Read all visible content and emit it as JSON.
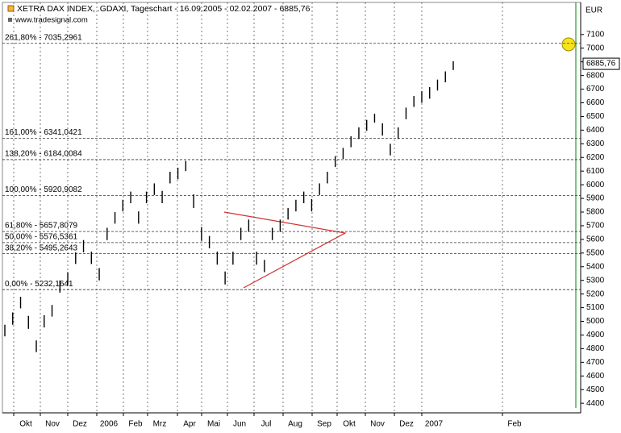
{
  "chart_data": {
    "type": "ohlc",
    "title": "XETRA DAX INDEX, .GDAXI, Tageschart - 16.09.2005 - 02.02.2007 - 6885,76",
    "subtitle": "www.tradesignal.com",
    "y_axis_label": "EUR",
    "categories": [
      "Okt",
      "Nov",
      "Dez",
      "2006",
      "Feb",
      "Mrz",
      "Apr",
      "Mai",
      "Jun",
      "Jul",
      "Aug",
      "Sep",
      "Okt",
      "Nov",
      "Dez",
      "2007",
      "Feb"
    ],
    "high": [
      4975,
      5065,
      5180,
      5040,
      4860,
      5045,
      5120,
      5300,
      5360,
      5505,
      5595,
      5510,
      5390,
      5685,
      5800,
      5890,
      5950,
      5805,
      5950,
      6010,
      5955,
      6095,
      6125,
      6175,
      5930,
      5690,
      5625,
      5510,
      5365,
      5510,
      5685,
      5745,
      5510,
      5450,
      5685,
      5745,
      5830,
      5890,
      5950,
      5895,
      6010,
      6095,
      6210,
      6270,
      6355,
      6420,
      6475,
      6520,
      6450,
      6300,
      6420,
      6565,
      6650,
      6685,
      6715,
      6770,
      6830,
      6905
    ],
    "low": [
      4890,
      4975,
      5095,
      4945,
      4775,
      4955,
      5035,
      5210,
      5270,
      5420,
      5505,
      5420,
      5300,
      5595,
      5715,
      5805,
      5865,
      5715,
      5865,
      5925,
      5865,
      6010,
      6040,
      6100,
      5830,
      5590,
      5535,
      5415,
      5270,
      5415,
      5595,
      5655,
      5415,
      5360,
      5595,
      5655,
      5745,
      5805,
      5865,
      5805,
      5925,
      6010,
      6130,
      6190,
      6275,
      6335,
      6395,
      6455,
      6360,
      6215,
      6335,
      6480,
      6570,
      6600,
      6630,
      6690,
      6750,
      6840
    ],
    "last_price": {
      "value": 6885.76,
      "label": "6885,76"
    },
    "fib_levels": [
      {
        "value": 7035.2961,
        "label": "261,80% - 7035,2961"
      },
      {
        "value": 6341.0421,
        "label": "161,00% - 6341,0421"
      },
      {
        "value": 6184.0084,
        "label": "138,20% - 6184,0084"
      },
      {
        "value": 5920.9082,
        "label": "100,00% - 5920,9082"
      },
      {
        "value": 5657.8079,
        "label": "61,80% - 5657,8079"
      },
      {
        "value": 5576.5361,
        "label": "50,00% - 5576,5361"
      },
      {
        "value": 5495.2643,
        "label": "38,20% - 5495,2643"
      },
      {
        "value": 5232.1641,
        "label": "0,00% - 5232,1641"
      }
    ],
    "ylim": [
      4330,
      7335
    ],
    "yticks": [
      4400,
      4500,
      4600,
      4700,
      4800,
      4900,
      5000,
      5100,
      5200,
      5300,
      5400,
      5500,
      5600,
      5700,
      5800,
      5900,
      6000,
      6100,
      6200,
      6300,
      6400,
      6500,
      6600,
      6700,
      6800,
      6900,
      7000,
      7100
    ],
    "color": "#000000",
    "grid": true
  }
}
